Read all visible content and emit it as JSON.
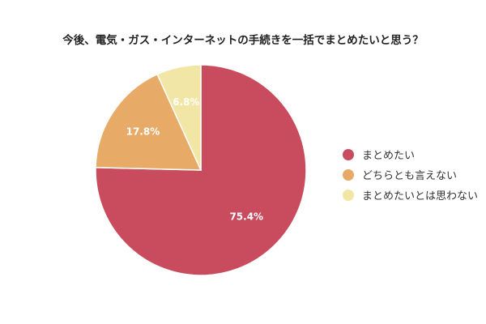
{
  "chart_data": {
    "type": "pie",
    "title": "今後、電気・ガス・インターネットの手続きを一括でまとめたいと思う？",
    "slices": [
      {
        "label": "まとめたい",
        "value": 75.4,
        "value_label": "75.4%",
        "color": "#c94c5e"
      },
      {
        "label": "どちらとも言えない",
        "value": 17.8,
        "value_label": "17.8%",
        "color": "#e8ab67"
      },
      {
        "label": "まとめたいとは思わない",
        "value": 6.8,
        "value_label": "6.8%",
        "color": "#f2e6a6"
      }
    ],
    "legend_position": "right"
  }
}
